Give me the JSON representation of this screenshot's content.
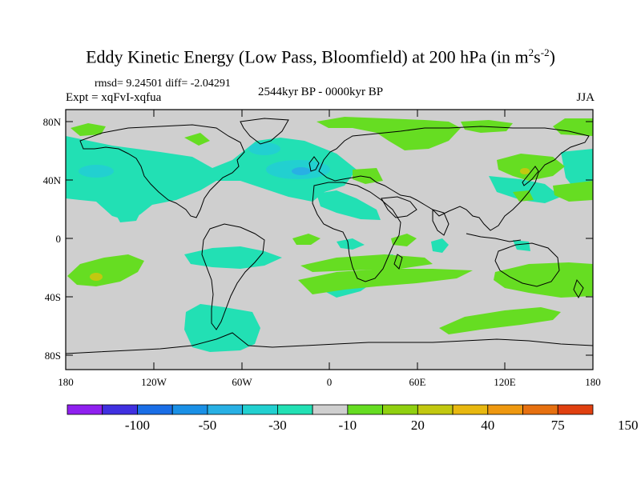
{
  "title": {
    "main": "Eddy Kinetic Energy (Low Pass, Bloomfield) at 200 hPa (in m",
    "sup1": "2",
    "mid": "s",
    "sup2": "-2",
    "end": ")"
  },
  "stats_line": "rmsd= 9.24501 diff= -2.04291",
  "expt_line": "Expt = xqFvI-xqfua",
  "period": "2544kyr BP - 0000kyr BP",
  "season": "JJA",
  "lat_labels": [
    "80N",
    "40N",
    "0",
    "40S",
    "80S"
  ],
  "lon_labels": [
    "180",
    "120W",
    "60W",
    "0",
    "60E",
    "120E",
    "180"
  ],
  "colorbar": {
    "labels": [
      "-100",
      "-50",
      "-30",
      "-10",
      "20",
      "40",
      "75",
      "150"
    ],
    "colors": [
      "#8f20ef",
      "#4030e0",
      "#1a6ee6",
      "#1a90e6",
      "#28b0e4",
      "#22d0d0",
      "#22e0b4",
      "#cfcfcf",
      "#66dd22",
      "#90d010",
      "#c2c810",
      "#e8b810",
      "#ee9810",
      "#e67010",
      "#e04010"
    ]
  },
  "colors": {
    "land_neutral": "#cfcfcf",
    "positive_low": "#66dd22",
    "positive_mid": "#c2c810",
    "negative_low": "#22e0b4",
    "negative_mid": "#22d0d0",
    "negative_high": "#28b0e4"
  }
}
